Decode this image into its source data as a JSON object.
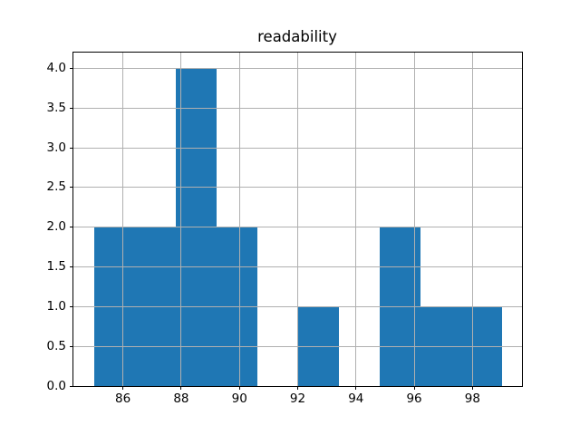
{
  "chart_data": {
    "type": "bar",
    "subtype": "histogram",
    "title": "readability",
    "xlabel": "",
    "ylabel": "",
    "bin_edges": [
      85.0,
      86.4,
      87.8,
      89.2,
      90.6,
      92.0,
      93.4,
      94.8,
      96.2,
      97.6,
      99.0
    ],
    "counts": [
      2,
      2,
      4,
      2,
      0,
      1,
      0,
      2,
      1,
      1
    ],
    "xlim": [
      84.3,
      99.7
    ],
    "ylim": [
      0,
      4.2
    ],
    "xticks": [
      86,
      88,
      90,
      92,
      94,
      96,
      98
    ],
    "ytick_values": [
      0.0,
      0.5,
      1.0,
      1.5,
      2.0,
      2.5,
      3.0,
      3.5,
      4.0
    ],
    "ytick_labels": [
      "0.0",
      "0.5",
      "1.0",
      "1.5",
      "2.0",
      "2.5",
      "3.0",
      "3.5",
      "4.0"
    ],
    "grid": true,
    "grid_over_bars": true,
    "legend": "none",
    "bar_color": "#1f77b4",
    "grid_color": "#b0b0b0",
    "axis_color": "#000000",
    "background_color": "#ffffff"
  }
}
